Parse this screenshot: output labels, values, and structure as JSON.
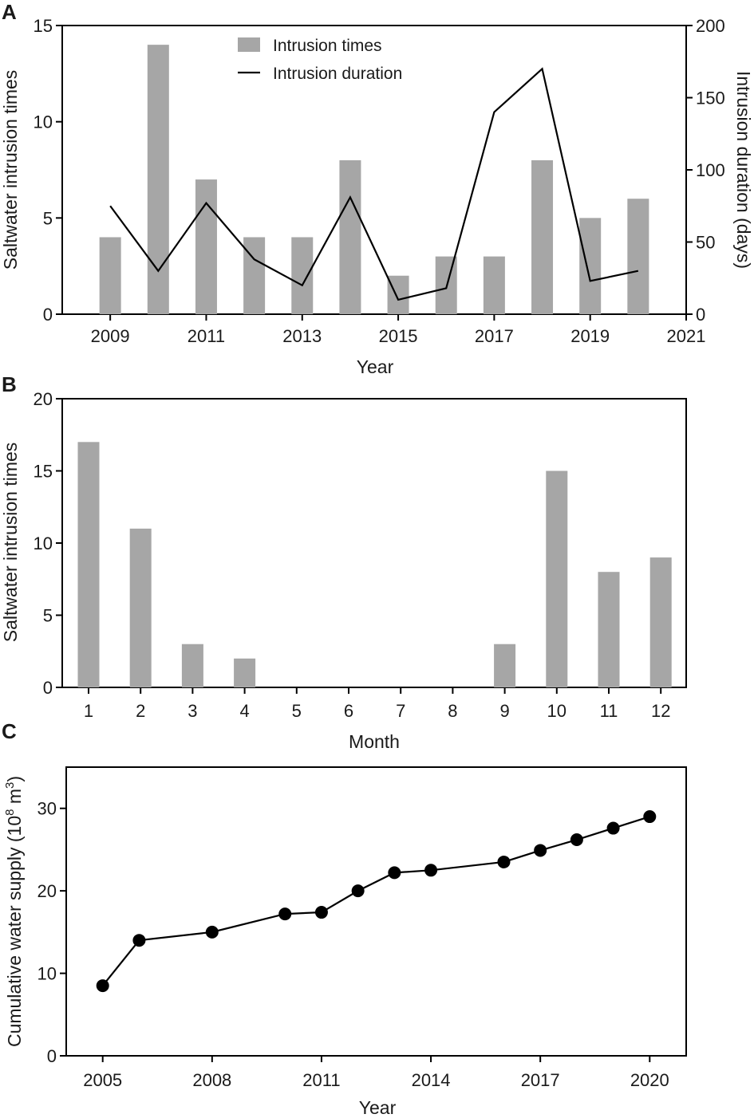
{
  "colors": {
    "bar": "#a6a6a6",
    "line": "#000000",
    "marker": "#000000"
  },
  "chart_data": [
    {
      "panel": "A",
      "type": "bar+line",
      "xlabel": "Year",
      "ylabel": "Saltwater intrusion times",
      "y2label": "Intrusion duration (days)",
      "xlim": [
        2008,
        2021
      ],
      "ylim": [
        0,
        15
      ],
      "y2lim": [
        0,
        200
      ],
      "xticks": [
        "2009",
        "2011",
        "2013",
        "2015",
        "2017",
        "2019",
        "2021"
      ],
      "yticks": [
        "0",
        "5",
        "10",
        "15"
      ],
      "y2ticks": [
        "0",
        "50",
        "100",
        "150",
        "200"
      ],
      "legend": {
        "bar": "Intrusion times",
        "line": "Intrusion duration",
        "placement": "top-center"
      },
      "x": [
        2009,
        2010,
        2011,
        2012,
        2013,
        2014,
        2015,
        2016,
        2017,
        2018,
        2019,
        2020
      ],
      "series": [
        {
          "name": "Intrusion times",
          "kind": "bar",
          "axis": "left",
          "values": [
            4,
            14,
            7,
            4,
            4,
            8,
            2,
            3,
            3,
            8,
            5,
            6
          ]
        },
        {
          "name": "Intrusion duration",
          "kind": "line",
          "axis": "right",
          "values": [
            75,
            30,
            77,
            38,
            20,
            81,
            10,
            18,
            140,
            170,
            23,
            30
          ]
        }
      ]
    },
    {
      "panel": "B",
      "type": "bar",
      "xlabel": "Month",
      "ylabel": "Saltwater intrusion times",
      "ylim": [
        0,
        20
      ],
      "yticks": [
        "0",
        "5",
        "10",
        "15",
        "20"
      ],
      "categories": [
        "1",
        "2",
        "3",
        "4",
        "5",
        "6",
        "7",
        "8",
        "9",
        "10",
        "11",
        "12"
      ],
      "values": [
        17,
        11,
        3,
        2,
        0,
        0,
        0,
        0,
        3,
        15,
        8,
        9
      ]
    },
    {
      "panel": "C",
      "type": "line",
      "xlabel": "Year",
      "ylabel": "Cumulative water supply (10",
      "ylabel_exp": "8",
      "ylabel_unit": " m",
      "ylabel_unit_exp": "3",
      "ylabel_close": ")",
      "xlim": [
        2004,
        2021
      ],
      "ylim": [
        0,
        35
      ],
      "xticks": [
        "2005",
        "2008",
        "2011",
        "2014",
        "2017",
        "2020"
      ],
      "yticks": [
        "0",
        "10",
        "20",
        "30"
      ],
      "x": [
        2005,
        2006,
        2008,
        2010,
        2011,
        2012,
        2013,
        2014,
        2016,
        2017,
        2018,
        2019,
        2020
      ],
      "values": [
        8.5,
        14.0,
        15.0,
        17.2,
        17.4,
        20.0,
        22.2,
        22.5,
        23.5,
        24.9,
        26.2,
        27.6,
        29.0
      ]
    }
  ]
}
